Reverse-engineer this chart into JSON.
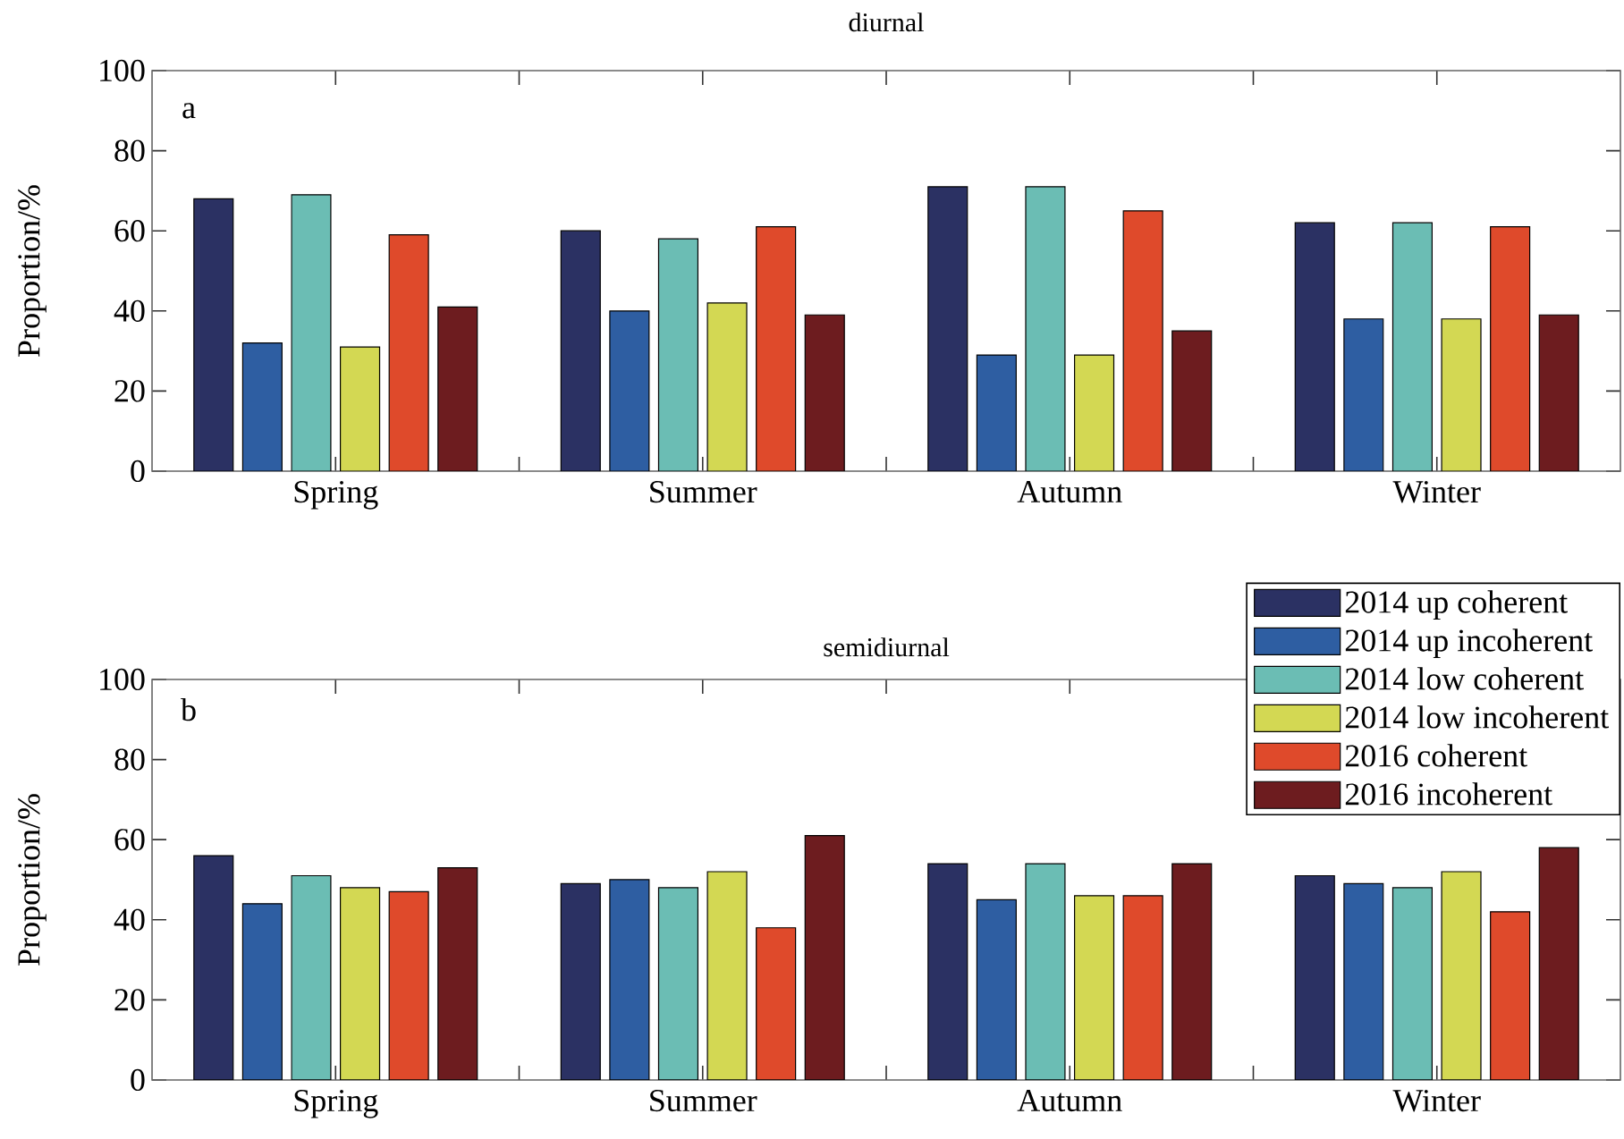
{
  "chart_data": [
    {
      "type": "bar",
      "title": "diurnal",
      "ylabel": "Proportion/%",
      "annotations": [
        "a"
      ],
      "categories": [
        "Spring",
        "Summer",
        "Autumn",
        "Winter"
      ],
      "ylim": [
        0,
        100
      ],
      "yticks": [
        0,
        20,
        40,
        60,
        80,
        100
      ],
      "series": [
        {
          "color": "#2b3163",
          "values": [
            68,
            60,
            71,
            62
          ]
        },
        {
          "color": "#2e5ea2",
          "values": [
            32,
            40,
            29,
            38
          ]
        },
        {
          "color": "#6bbdb4",
          "values": [
            69,
            58,
            71,
            62
          ]
        },
        {
          "color": "#d3d853",
          "values": [
            31,
            42,
            29,
            38
          ]
        },
        {
          "color": "#df4a2b",
          "values": [
            59,
            61,
            65,
            61
          ]
        },
        {
          "color": "#6d1c1f",
          "values": [
            41,
            39,
            35,
            39
          ]
        }
      ]
    },
    {
      "type": "bar",
      "title": "semidiurnal",
      "ylabel": "Proportion/%",
      "annotations": [
        "b"
      ],
      "categories": [
        "Spring",
        "Summer",
        "Autumn",
        "Winter"
      ],
      "ylim": [
        0,
        100
      ],
      "yticks": [
        0,
        20,
        40,
        60,
        80,
        100
      ],
      "legend": "top right",
      "series": [
        {
          "name": "2014 up coherent",
          "color": "#2b3163",
          "values": [
            56,
            49,
            54,
            51
          ]
        },
        {
          "name": "2014 up incoherent",
          "color": "#2e5ea2",
          "values": [
            44,
            50,
            45,
            49
          ]
        },
        {
          "name": "2014 low coherent",
          "color": "#6bbdb4",
          "values": [
            51,
            48,
            54,
            48
          ]
        },
        {
          "name": "2014 low incoherent",
          "color": "#d3d853",
          "values": [
            48,
            52,
            46,
            52
          ]
        },
        {
          "name": "2016 coherent",
          "color": "#df4a2b",
          "values": [
            47,
            38,
            46,
            42
          ]
        },
        {
          "name": "2016 incoherent",
          "color": "#6d1c1f",
          "values": [
            53,
            61,
            54,
            58
          ]
        }
      ]
    }
  ]
}
